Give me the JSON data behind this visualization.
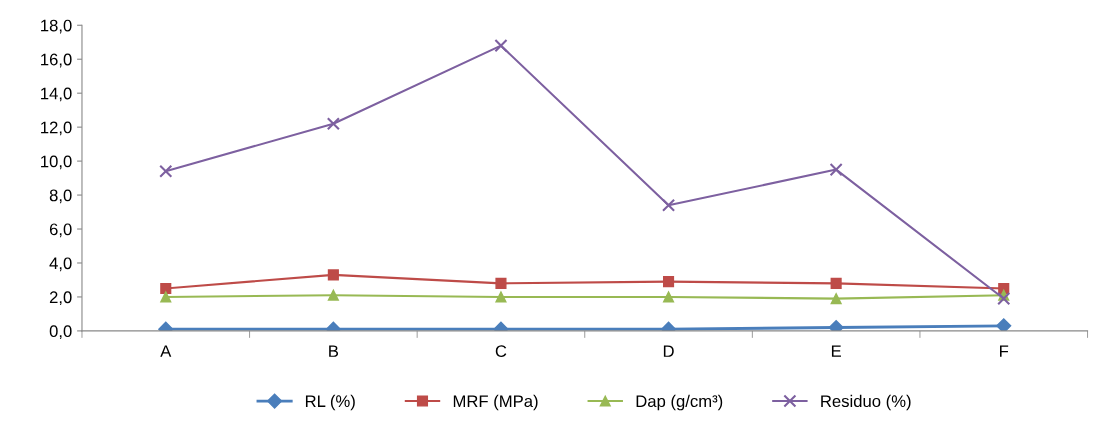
{
  "chart_data": {
    "type": "line",
    "categories": [
      "A",
      "B",
      "C",
      "D",
      "E",
      "F"
    ],
    "series": [
      {
        "name": "RL (%)",
        "color": "#4a7ebb",
        "marker": "diamond",
        "values": [
          0.1,
          0.1,
          0.1,
          0.1,
          0.2,
          0.3
        ]
      },
      {
        "name": "MRF (MPa)",
        "color": "#be4b48",
        "marker": "square",
        "values": [
          2.5,
          3.3,
          2.8,
          2.9,
          2.8,
          2.5
        ]
      },
      {
        "name": "Dap (g/cm³)",
        "color": "#98b954",
        "marker": "triangle",
        "values": [
          2.0,
          2.1,
          2.0,
          2.0,
          1.9,
          2.1
        ]
      },
      {
        "name": "Residuo (%)",
        "color": "#7d60a0",
        "marker": "cross",
        "values": [
          9.4,
          12.2,
          16.8,
          7.4,
          9.5,
          1.9
        ]
      }
    ],
    "ylim": [
      0,
      18
    ],
    "yticks": [
      {
        "value": 0,
        "label": "0,0"
      },
      {
        "value": 2,
        "label": "2,0"
      },
      {
        "value": 4,
        "label": "4,0"
      },
      {
        "value": 6,
        "label": "6,0"
      },
      {
        "value": 8,
        "label": "8,0"
      },
      {
        "value": 10,
        "label": "10,0"
      },
      {
        "value": 12,
        "label": "12,0"
      },
      {
        "value": 14,
        "label": "14,0"
      },
      {
        "value": 16,
        "label": "16,0"
      },
      {
        "value": 18,
        "label": "18,0"
      }
    ],
    "grid": false,
    "legend": "bottom",
    "line_style": "solid"
  }
}
